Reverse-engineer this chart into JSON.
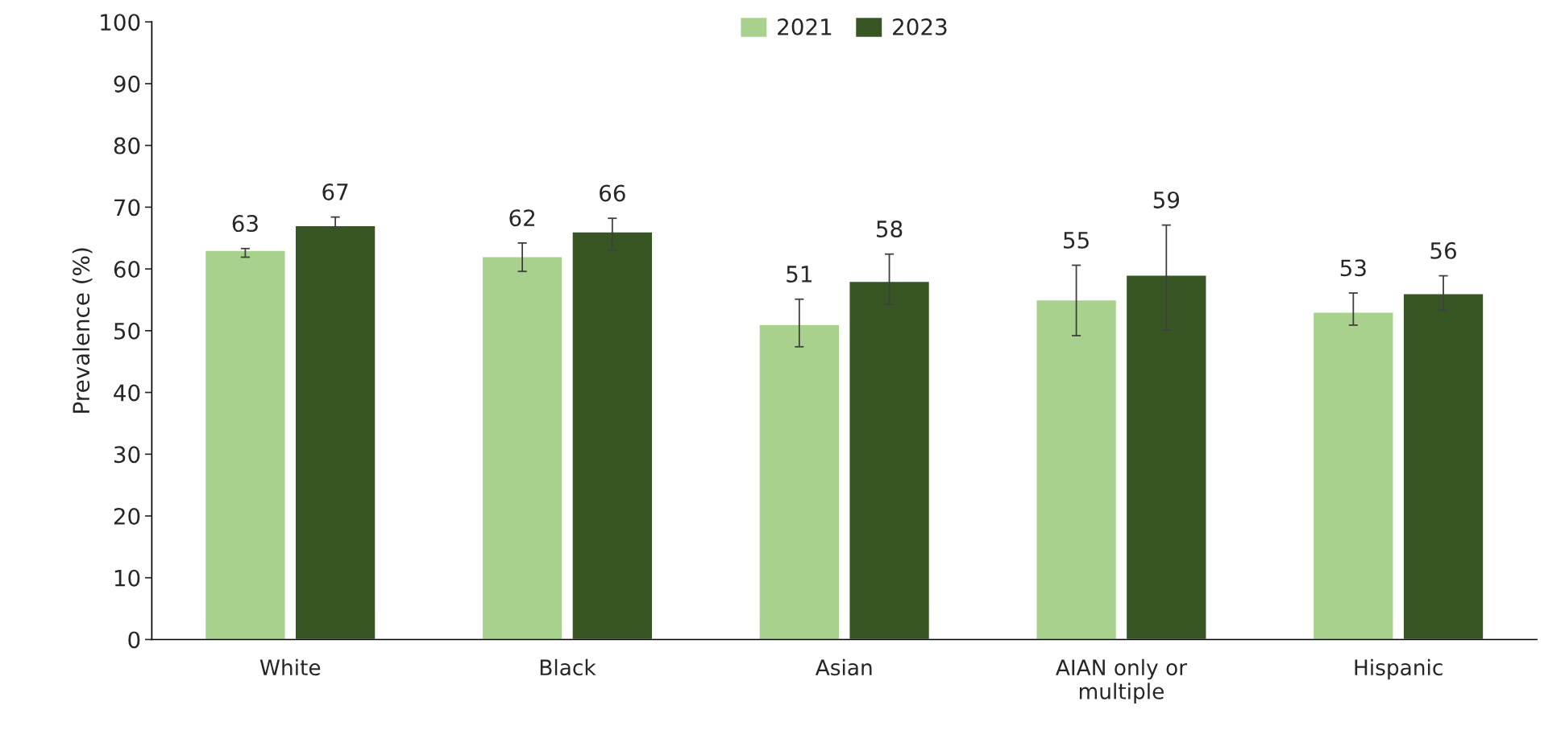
{
  "chart_data": {
    "type": "bar",
    "ylabel": "Prevalence (%)",
    "categories": [
      "White",
      "Black",
      "Asian",
      "AIAN only or multiple",
      "Hispanic"
    ],
    "series": [
      {
        "name": "2021",
        "color": "#a9d18e",
        "values": [
          63,
          62,
          51,
          55,
          53
        ],
        "errors": [
          [
            61.9,
            63.3
          ],
          [
            59.6,
            64.2
          ],
          [
            47.4,
            55.1
          ],
          [
            49.2,
            60.6
          ],
          [
            50.9,
            56.1
          ]
        ]
      },
      {
        "name": "2023",
        "color": "#375623",
        "values": [
          67,
          66,
          58,
          59,
          56
        ],
        "errors": [
          [
            66.6,
            68.4
          ],
          [
            63.0,
            68.2
          ],
          [
            54.3,
            62.4
          ],
          [
            50.1,
            67.1
          ],
          [
            53.3,
            58.9
          ]
        ]
      }
    ],
    "ylim": [
      0,
      100
    ],
    "yticks": [
      0,
      10,
      20,
      30,
      40,
      50,
      60,
      70,
      80,
      90,
      100
    ],
    "data_labels": true,
    "legend": "top",
    "grid": false
  }
}
